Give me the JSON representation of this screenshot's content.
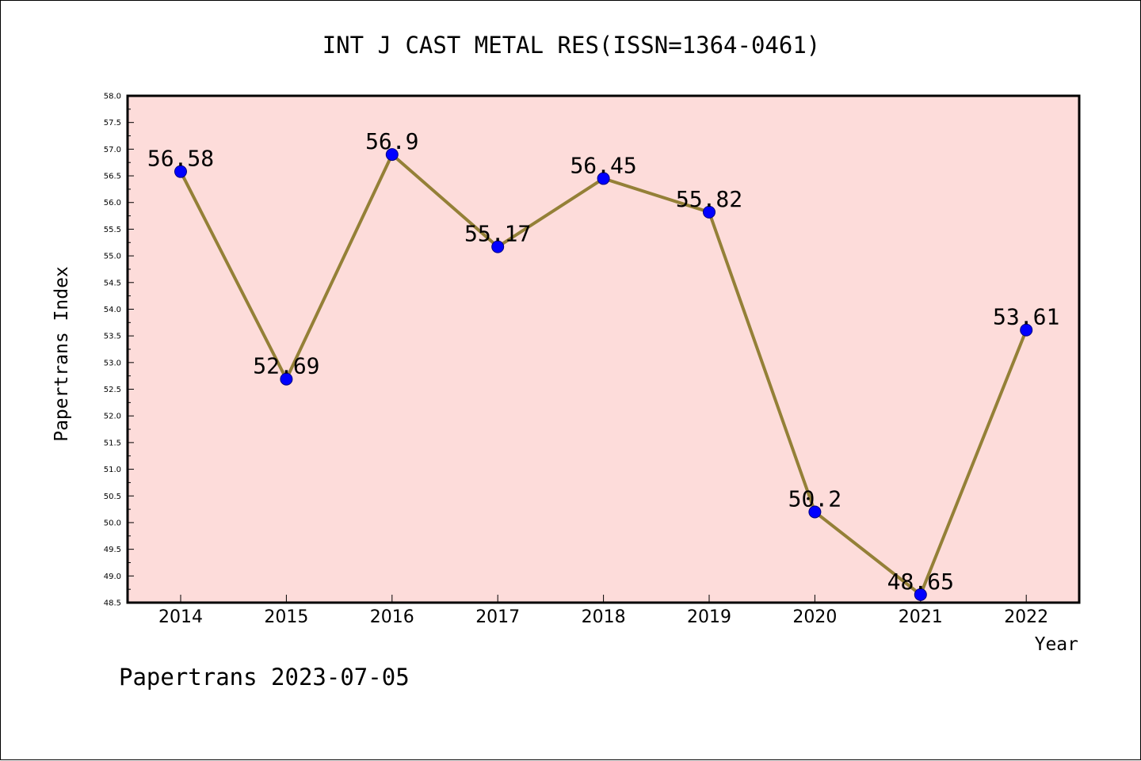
{
  "chart_data": {
    "type": "line",
    "title": "INT J CAST METAL RES(ISSN=1364-0461)",
    "xlabel": "Year",
    "ylabel": "Papertrans Index",
    "categories": [
      "2014",
      "2015",
      "2016",
      "2017",
      "2018",
      "2019",
      "2020",
      "2021",
      "2022"
    ],
    "values": [
      56.58,
      52.69,
      56.9,
      55.17,
      56.45,
      55.82,
      50.2,
      48.65,
      53.61
    ],
    "data_labels": [
      "56.58",
      "52.69",
      "56.9",
      "55.17",
      "56.45",
      "55.82",
      "50.2",
      "48.65",
      "53.61"
    ],
    "ylim": [
      48.5,
      58.0
    ],
    "y_ticks": [
      "48.5",
      "49.0",
      "49.5",
      "50.0",
      "50.5",
      "51.0",
      "51.5",
      "52.0",
      "52.5",
      "53.0",
      "53.5",
      "54.0",
      "54.5",
      "55.0",
      "55.5",
      "56.0",
      "56.5",
      "57.0",
      "57.5",
      "58.0"
    ],
    "grid": false,
    "legend": "none",
    "colors": {
      "plot_background": "#fddcda",
      "line": "#948037",
      "marker": "#0000ff",
      "axis": "#000000"
    }
  },
  "footer": "Papertrans 2023-07-05"
}
